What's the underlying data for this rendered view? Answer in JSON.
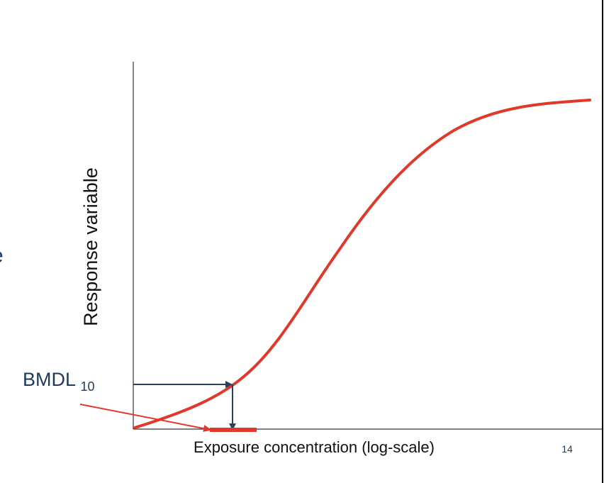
{
  "diagram": {
    "y_axis_label": "Response variable",
    "x_axis_label": "Exposure concentration (log-scale)",
    "bmdl_label": "BMDL",
    "bmdl_subscript": "10",
    "page_number": "14",
    "left_edge_fragment": "e"
  },
  "colors": {
    "curve": "#e0382a",
    "arrows": "#27415e",
    "bmdl_text": "#1f3a5c"
  }
}
